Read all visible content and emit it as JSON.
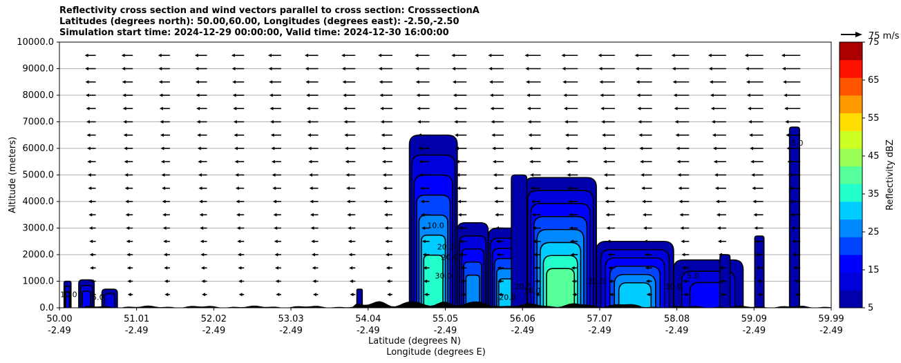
{
  "title_lines": [
    "Reflectivity cross section and wind vectors parallel to cross section: CrosssectionA",
    "Latitudes (degrees north): 50.00,60.00, Longitudes (degrees east): -2.50,-2.50",
    "Simulation start time: 2024-12-29 00:00:00, Valid time: 2024-12-30 16:00:00"
  ],
  "chart_data": {
    "type": "contour",
    "ylabel": "Altitude (meters)",
    "xlabel_lat": "Latitude (degrees N)",
    "xlabel_lon": "Longitude (degrees E)",
    "ylim": [
      0,
      10000
    ],
    "xlim": [
      50.0,
      59.99
    ],
    "y_ticks": [
      "0.0",
      "1000.0",
      "2000.0",
      "3000.0",
      "4000.0",
      "5000.0",
      "6000.0",
      "7000.0",
      "8000.0",
      "9000.0",
      "10000.0"
    ],
    "x_ticks": [
      {
        "lat": "50.00",
        "lon": "-2.49"
      },
      {
        "lat": "51.01",
        "lon": "-2.49"
      },
      {
        "lat": "52.02",
        "lon": "-2.49"
      },
      {
        "lat": "53.03",
        "lon": "-2.49"
      },
      {
        "lat": "54.04",
        "lon": "-2.49"
      },
      {
        "lat": "55.05",
        "lon": "-2.49"
      },
      {
        "lat": "56.06",
        "lon": "-2.49"
      },
      {
        "lat": "57.07",
        "lon": "-2.49"
      },
      {
        "lat": "58.08",
        "lon": "-2.49"
      },
      {
        "lat": "59.09",
        "lon": "-2.49"
      },
      {
        "lat": "59.99",
        "lon": "-2.49"
      }
    ],
    "grid": "horizontal",
    "colorbar": {
      "label": "Reflectivity dBZ",
      "range": [
        5,
        75
      ],
      "tick_labels": [
        "5",
        "15",
        "25",
        "35",
        "45",
        "55",
        "65",
        "75"
      ],
      "colors": [
        "#0000aa",
        "#0000dd",
        "#0000ff",
        "#0044ff",
        "#0088ff",
        "#00ccff",
        "#22ffcc",
        "#55ff99",
        "#99ff55",
        "#ccff22",
        "#ffdd00",
        "#ff9900",
        "#ff5500",
        "#ff1100",
        "#aa0000"
      ]
    },
    "quiver_key": "75 m/s",
    "contour_labels": [
      "10.0",
      "5.0",
      "20.0",
      "10.0",
      "20.0",
      "30.0",
      "20.0",
      "20.0",
      "30.0",
      "20.0",
      "10.0",
      "5.0",
      "5.0"
    ],
    "reflectivity_cells": [
      {
        "x0": 50.06,
        "x1": 50.15,
        "top": 1000,
        "max_dbz": 15
      },
      {
        "x0": 50.25,
        "x1": 50.45,
        "top": 1050,
        "max_dbz": 18
      },
      {
        "x0": 50.55,
        "x1": 50.75,
        "top": 700,
        "max_dbz": 12
      },
      {
        "x0": 53.85,
        "x1": 53.92,
        "top": 700,
        "max_dbz": 8
      },
      {
        "x0": 54.53,
        "x1": 55.15,
        "top": 6500,
        "max_dbz": 38
      },
      {
        "x0": 55.15,
        "x1": 55.55,
        "top": 3200,
        "max_dbz": 25
      },
      {
        "x0": 55.55,
        "x1": 56.02,
        "top": 3000,
        "max_dbz": 30
      },
      {
        "x0": 56.02,
        "x1": 56.95,
        "top": 4900,
        "max_dbz": 40
      },
      {
        "x0": 56.95,
        "x1": 57.95,
        "top": 2500,
        "max_dbz": 30
      },
      {
        "x0": 57.95,
        "x1": 58.85,
        "top": 1800,
        "max_dbz": 15
      },
      {
        "x0": 58.55,
        "x1": 58.68,
        "top": 2000,
        "max_dbz": 8
      },
      {
        "x0": 59.0,
        "x1": 59.12,
        "top": 2700,
        "max_dbz": 8
      },
      {
        "x0": 59.45,
        "x1": 59.58,
        "top": 6800,
        "max_dbz": 8
      },
      {
        "x0": 55.85,
        "x1": 56.05,
        "top": 5000,
        "max_dbz": 8
      }
    ],
    "wind_arrow_rows_m": [
      500,
      1000,
      1500,
      2000,
      2500,
      3000,
      3500,
      4000,
      4500,
      5000,
      5500,
      6000,
      6500,
      7000,
      7500,
      8000,
      8500,
      9000,
      9500
    ],
    "wind_arrow_cols_deg": [
      50.47,
      50.95,
      51.43,
      51.91,
      52.39,
      52.87,
      53.35,
      53.83,
      54.31,
      54.79,
      55.27,
      55.75,
      56.23,
      56.71,
      57.19,
      57.67,
      58.15,
      58.63,
      59.11,
      59.59
    ]
  }
}
